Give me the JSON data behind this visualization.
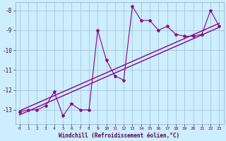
{
  "xlabel": "Windchill (Refroidissement éolien,°C)",
  "x_values": [
    0,
    1,
    2,
    3,
    4,
    5,
    6,
    7,
    8,
    9,
    10,
    11,
    12,
    13,
    14,
    15,
    16,
    17,
    18,
    19,
    20,
    21,
    22,
    23
  ],
  "y_scatter": [
    -13.1,
    -13.0,
    -13.0,
    -12.8,
    -12.1,
    -13.3,
    -12.7,
    -13.0,
    -13.0,
    -9.0,
    -10.5,
    -11.3,
    -11.5,
    -7.8,
    -8.5,
    -8.5,
    -9.0,
    -8.8,
    -9.2,
    -9.3,
    -9.3,
    -9.2,
    -8.0,
    -8.8
  ],
  "line1_x": [
    0,
    23
  ],
  "line1_y": [
    -13.25,
    -8.85
  ],
  "line2_x": [
    0,
    23
  ],
  "line2_y": [
    -13.05,
    -8.65
  ],
  "bg_color": "#cceeff",
  "grid_color": "#aaccdd",
  "line_color": "#880088",
  "scatter_color": "#880088",
  "xlim": [
    -0.5,
    23.5
  ],
  "ylim": [
    -13.7,
    -7.6
  ],
  "yticks": [
    -13,
    -12,
    -11,
    -10,
    -9,
    -8
  ],
  "xticks": [
    0,
    1,
    2,
    3,
    4,
    5,
    6,
    7,
    8,
    9,
    10,
    11,
    12,
    13,
    14,
    15,
    16,
    17,
    18,
    19,
    20,
    21,
    22,
    23
  ]
}
